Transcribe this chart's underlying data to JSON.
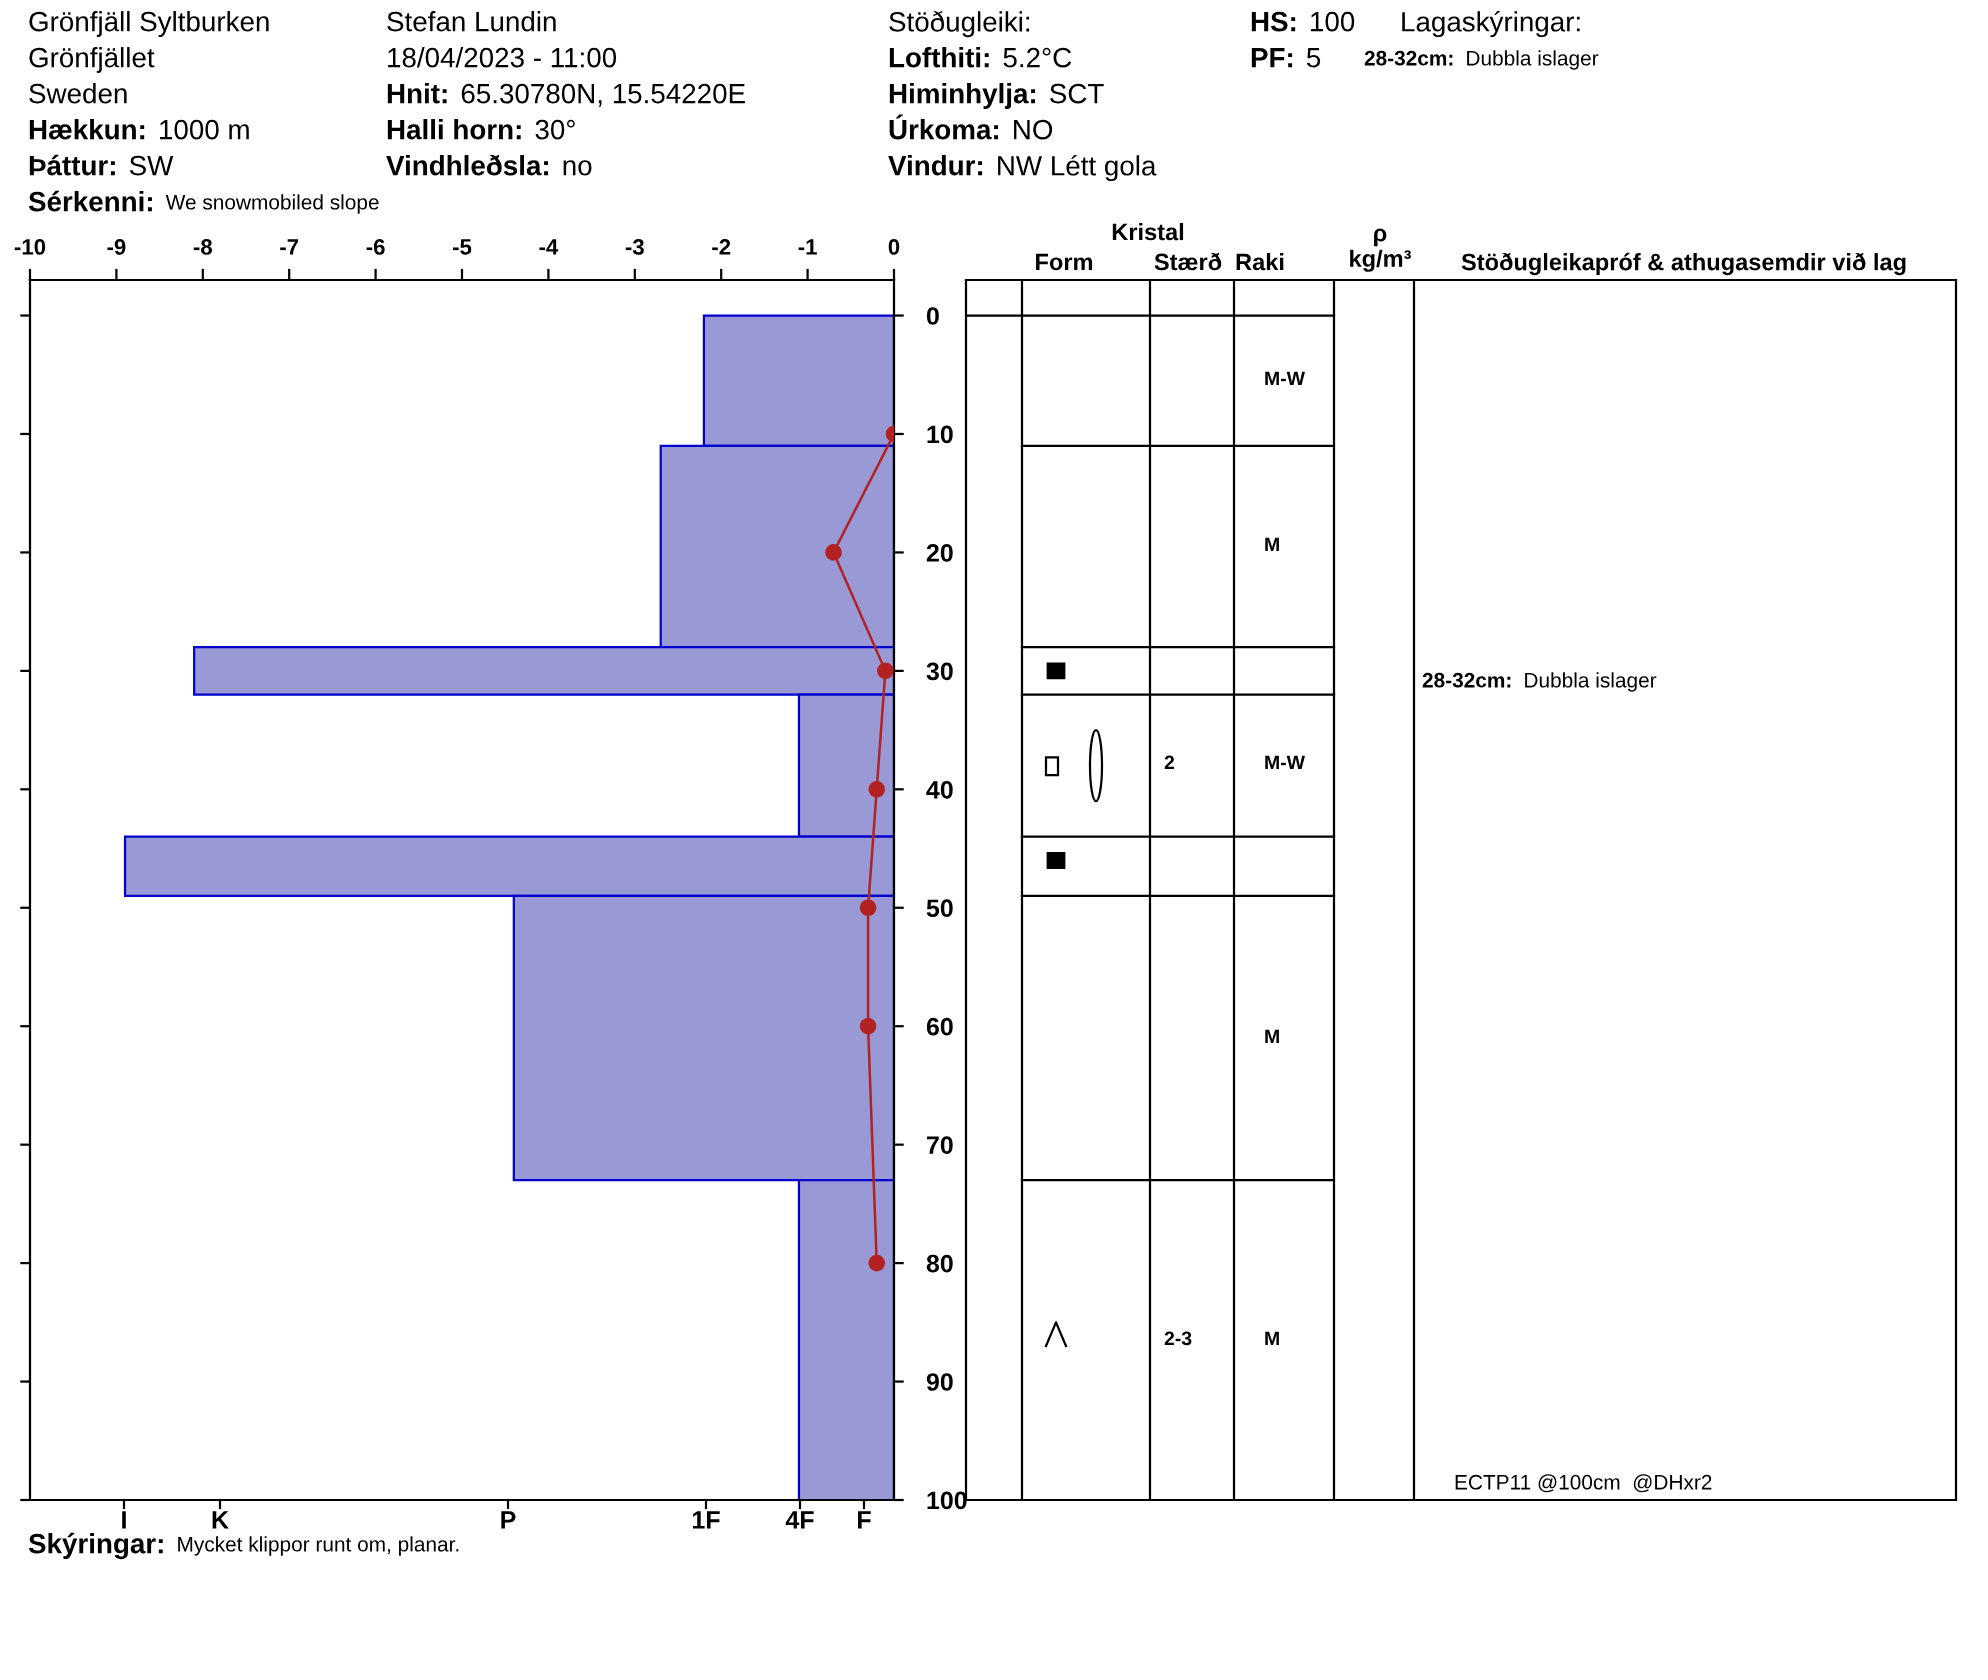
{
  "chart_data": {
    "type": "histogram",
    "orientation": "horizontal",
    "bins": [
      0,
      11,
      28,
      32,
      44,
      49,
      73,
      100
    ],
    "series": [
      {
        "color": "#9999d6",
        "values": [
          -2.2,
          -2.7,
          -8.1,
          -1.1,
          -8.9,
          -4.4,
          -1.1
        ]
      },
      {
        "type": "line",
        "color": "#b22222",
        "x": [
          10,
          20,
          30,
          40,
          50,
          60,
          80
        ],
        "values": [
          0,
          -0.7,
          -0.1,
          -0.2,
          -0.3,
          -0.3,
          -0.2
        ]
      }
    ],
    "marker": "circle",
    "line_style": "solid",
    "grid": false,
    "xlim": [
      -10,
      0
    ],
    "xticks": [
      -10,
      -9,
      -8,
      -7,
      -6,
      -5,
      -4,
      -3,
      -2,
      -1,
      0
    ],
    "ylim": [
      100,
      -3
    ],
    "yticks": [
      0,
      10,
      20,
      30,
      40,
      50,
      60,
      70,
      80,
      90,
      100
    ],
    "annotations": [
      "Grönfjäll Syltburken",
      "Grönfjället",
      "Sweden",
      "Hækkun: 1000 m",
      "Þáttur: SW",
      "Sérkenni: We snowmobiled slope",
      "Stefan Lundin",
      "18/04/2023 - 11:00",
      "Hnit: 65.30780N, 15.54220E",
      "Halli horn: 30°",
      "Vindhleðsla: no",
      "Stöðugleiki:",
      "Lofthiti: 5.2°C",
      "Himinhylja: SCT",
      "Úrkoma: NO",
      "Vindur: NW Létt gola",
      "HS: 100",
      "PF: 5",
      "Lagaskýringar:",
      "28-32cm: Dubbla islager",
      "Skýringar: Mycket klippor runt om, planar.",
      "Kristal",
      "Form",
      "Stærð",
      "Raki",
      "ρ\nkg/m³",
      "Stöðugleikapróf & athugasemdir við lag",
      "M-W",
      "M",
      "2",
      "M-W",
      "M",
      "2-3",
      "M",
      "28-32cm: Dubbla islager",
      "ECTP11 @100cm  @DHxr2",
      "I",
      "K",
      "P",
      "1F",
      "4F",
      "F"
    ]
  }
}
